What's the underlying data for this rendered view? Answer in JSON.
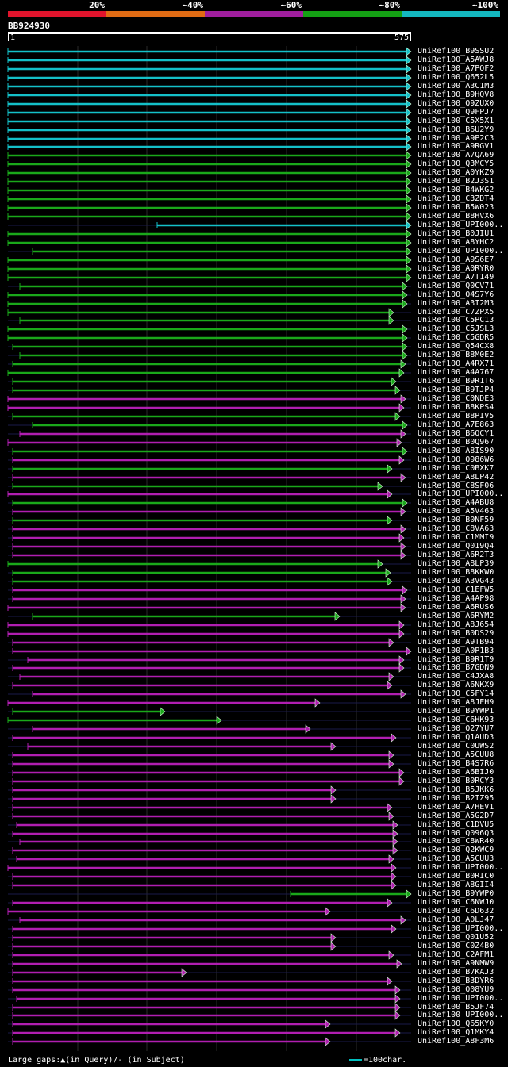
{
  "legend": [
    {
      "label": "20%",
      "color": "#e0142c"
    },
    {
      "label": "~40%",
      "color": "#e06b14"
    },
    {
      "label": "~60%",
      "color": "#a01e9e"
    },
    {
      "label": "~80%",
      "color": "#14a014"
    },
    {
      "label": "~100%",
      "color": "#14b8c0"
    }
  ],
  "query_id": "BB924930",
  "scale": {
    "start": "1",
    "end": "575"
  },
  "colors": {
    "cyan": "#14c0c8",
    "green": "#1aa81a",
    "magenta": "#b01eb0",
    "grid": "#2a2a2a"
  },
  "hits": [
    {
      "id": "UniRef100_B9SSU2",
      "c": "cyan"
    },
    {
      "id": "UniRef100_A5AWJ8",
      "c": "cyan"
    },
    {
      "id": "UniRef100_A7PQF2",
      "c": "cyan"
    },
    {
      "id": "UniRef100_Q652L5",
      "c": "cyan"
    },
    {
      "id": "UniRef100_A3C1M3",
      "c": "cyan"
    },
    {
      "id": "UniRef100_B9HQV8",
      "c": "cyan"
    },
    {
      "id": "UniRef100_Q9ZUX0",
      "c": "cyan"
    },
    {
      "id": "UniRef100_Q9FPJ7",
      "c": "cyan"
    },
    {
      "id": "UniRef100_C5X5X1",
      "c": "cyan"
    },
    {
      "id": "UniRef100_B6U2Y9",
      "c": "cyan"
    },
    {
      "id": "UniRef100_A9P2C3",
      "c": "cyan"
    },
    {
      "id": "UniRef100_A9RGV1",
      "c": "cyan"
    },
    {
      "id": "UniRef100_A7QA69",
      "c": "green"
    },
    {
      "id": "UniRef100_Q3MCY5",
      "c": "green"
    },
    {
      "id": "UniRef100_A0YKZ9",
      "c": "green"
    },
    {
      "id": "UniRef100_B2J3S1",
      "c": "green"
    },
    {
      "id": "UniRef100_B4WKG2",
      "c": "green"
    },
    {
      "id": "UniRef100_C3ZDT4",
      "c": "green"
    },
    {
      "id": "UniRef100_B5W023",
      "c": "green"
    },
    {
      "id": "UniRef100_B8HVX6",
      "c": "green"
    },
    {
      "id": "UniRef100_UPI000..",
      "c": "cyan"
    },
    {
      "id": "UniRef100_B0JIU1",
      "c": "green"
    },
    {
      "id": "UniRef100_A8YHC2",
      "c": "green"
    },
    {
      "id": "UniRef100_UPI000..",
      "c": "green"
    },
    {
      "id": "UniRef100_A9S6E7",
      "c": "green"
    },
    {
      "id": "UniRef100_A0RYR0",
      "c": "green"
    },
    {
      "id": "UniRef100_A7T149",
      "c": "green"
    },
    {
      "id": "UniRef100_Q0CV71",
      "c": "green"
    },
    {
      "id": "UniRef100_Q4S7Y6",
      "c": "green"
    },
    {
      "id": "UniRef100_A3I2M3",
      "c": "green"
    },
    {
      "id": "UniRef100_C7ZPX5",
      "c": "green"
    },
    {
      "id": "UniRef100_C5PC13",
      "c": "green"
    },
    {
      "id": "UniRef100_C5JSL3",
      "c": "green"
    },
    {
      "id": "UniRef100_C5GDR5",
      "c": "green"
    },
    {
      "id": "UniRef100_Q54CX8",
      "c": "green"
    },
    {
      "id": "UniRef100_B8M0E2",
      "c": "green"
    },
    {
      "id": "UniRef100_A4RX71",
      "c": "green"
    },
    {
      "id": "UniRef100_A4A767",
      "c": "green"
    },
    {
      "id": "UniRef100_B9R1T6",
      "c": "green"
    },
    {
      "id": "UniRef100_B9TJP4",
      "c": "green"
    },
    {
      "id": "UniRef100_C0NDE3",
      "c": "magenta"
    },
    {
      "id": "UniRef100_B8KPS4",
      "c": "magenta"
    },
    {
      "id": "UniRef100_B8PIV5",
      "c": "green"
    },
    {
      "id": "UniRef100_A7E863",
      "c": "green"
    },
    {
      "id": "UniRef100_B6QCY1",
      "c": "magenta"
    },
    {
      "id": "UniRef100_B0Q967",
      "c": "magenta"
    },
    {
      "id": "UniRef100_A8IS90",
      "c": "green"
    },
    {
      "id": "UniRef100_Q986W6",
      "c": "magenta"
    },
    {
      "id": "UniRef100_C0BXK7",
      "c": "green"
    },
    {
      "id": "UniRef100_A8LP42",
      "c": "magenta"
    },
    {
      "id": "UniRef100_C8SF06",
      "c": "green"
    },
    {
      "id": "UniRef100_UPI000..",
      "c": "magenta"
    },
    {
      "id": "UniRef100_A4ABU8",
      "c": "green"
    },
    {
      "id": "UniRef100_A5V463",
      "c": "magenta"
    },
    {
      "id": "UniRef100_B0NF59",
      "c": "green"
    },
    {
      "id": "UniRef100_C8VA63",
      "c": "magenta"
    },
    {
      "id": "UniRef100_C1MMI9",
      "c": "magenta"
    },
    {
      "id": "UniRef100_Q019Q4",
      "c": "magenta"
    },
    {
      "id": "UniRef100_A6R2T3",
      "c": "magenta"
    },
    {
      "id": "UniRef100_A8LP39",
      "c": "green"
    },
    {
      "id": "UniRef100_B8KKW0",
      "c": "green"
    },
    {
      "id": "UniRef100_A3VG43",
      "c": "green"
    },
    {
      "id": "UniRef100_C1EFW5",
      "c": "magenta"
    },
    {
      "id": "UniRef100_A4AP98",
      "c": "magenta"
    },
    {
      "id": "UniRef100_A6RUS6",
      "c": "magenta"
    },
    {
      "id": "UniRef100_A6RYM2",
      "c": "green"
    },
    {
      "id": "UniRef100_A8J654",
      "c": "magenta"
    },
    {
      "id": "UniRef100_B0DS29",
      "c": "magenta"
    },
    {
      "id": "UniRef100_A9TB94",
      "c": "magenta"
    },
    {
      "id": "UniRef100_A0P1B3",
      "c": "magenta"
    },
    {
      "id": "UniRef100_B9R1T9",
      "c": "magenta"
    },
    {
      "id": "UniRef100_B7GDN9",
      "c": "magenta"
    },
    {
      "id": "UniRef100_C4JXA8",
      "c": "magenta"
    },
    {
      "id": "UniRef100_A6NKX9",
      "c": "magenta"
    },
    {
      "id": "UniRef100_C5FY14",
      "c": "magenta"
    },
    {
      "id": "UniRef100_A8JEH9",
      "c": "magenta"
    },
    {
      "id": "UniRef100_B9YWP1",
      "c": "green"
    },
    {
      "id": "UniRef100_C6HK93",
      "c": "green"
    },
    {
      "id": "UniRef100_Q27YU7",
      "c": "magenta"
    },
    {
      "id": "UniRef100_Q1AUD3",
      "c": "magenta"
    },
    {
      "id": "UniRef100_C0UWS2",
      "c": "magenta"
    },
    {
      "id": "UniRef100_A5CUU8",
      "c": "magenta"
    },
    {
      "id": "UniRef100_B4S7R6",
      "c": "magenta"
    },
    {
      "id": "UniRef100_A6BIJ0",
      "c": "magenta"
    },
    {
      "id": "UniRef100_B0RCY3",
      "c": "magenta"
    },
    {
      "id": "UniRef100_B5JKK6",
      "c": "magenta"
    },
    {
      "id": "UniRef100_B2IZ95",
      "c": "magenta"
    },
    {
      "id": "UniRef100_A7HEV1",
      "c": "magenta"
    },
    {
      "id": "UniRef100_A5G2D7",
      "c": "magenta"
    },
    {
      "id": "UniRef100_C1DVU5",
      "c": "magenta"
    },
    {
      "id": "UniRef100_Q096Q3",
      "c": "magenta"
    },
    {
      "id": "UniRef100_C8WR40",
      "c": "magenta"
    },
    {
      "id": "UniRef100_Q2KWC9",
      "c": "magenta"
    },
    {
      "id": "UniRef100_A5CUU3",
      "c": "magenta"
    },
    {
      "id": "UniRef100_UPI000..",
      "c": "magenta"
    },
    {
      "id": "UniRef100_B0RIC0",
      "c": "magenta"
    },
    {
      "id": "UniRef100_A8GII4",
      "c": "magenta"
    },
    {
      "id": "UniRef100_B9YWP0",
      "c": "green"
    },
    {
      "id": "UniRef100_C6NWJ0",
      "c": "magenta"
    },
    {
      "id": "UniRef100_C6D632",
      "c": "magenta"
    },
    {
      "id": "UniRef100_A0LJ47",
      "c": "magenta"
    },
    {
      "id": "UniRef100_UPI000..",
      "c": "magenta"
    },
    {
      "id": "UniRef100_Q01U52",
      "c": "magenta"
    },
    {
      "id": "UniRef100_C0Z4B0",
      "c": "magenta"
    },
    {
      "id": "UniRef100_C2AFM1",
      "c": "magenta"
    },
    {
      "id": "UniRef100_A9NMW9",
      "c": "magenta"
    },
    {
      "id": "UniRef100_B7KAJ3",
      "c": "magenta"
    },
    {
      "id": "UniRef100_B3DYR6",
      "c": "magenta"
    },
    {
      "id": "UniRef100_Q08YU9",
      "c": "magenta"
    },
    {
      "id": "UniRef100_UPI000..",
      "c": "magenta"
    },
    {
      "id": "UniRef100_B5JF74",
      "c": "magenta"
    },
    {
      "id": "UniRef100_UPI000..",
      "c": "magenta"
    },
    {
      "id": "UniRef100_Q65KY0",
      "c": "magenta"
    },
    {
      "id": "UniRef100_Q1MKY4",
      "c": "magenta"
    },
    {
      "id": "UniRef100_A8F3M6",
      "c": "magenta"
    }
  ],
  "footer": {
    "text": "Large gaps:▲(in Query)/- (in Subject)",
    "scale_label": "=100char."
  }
}
